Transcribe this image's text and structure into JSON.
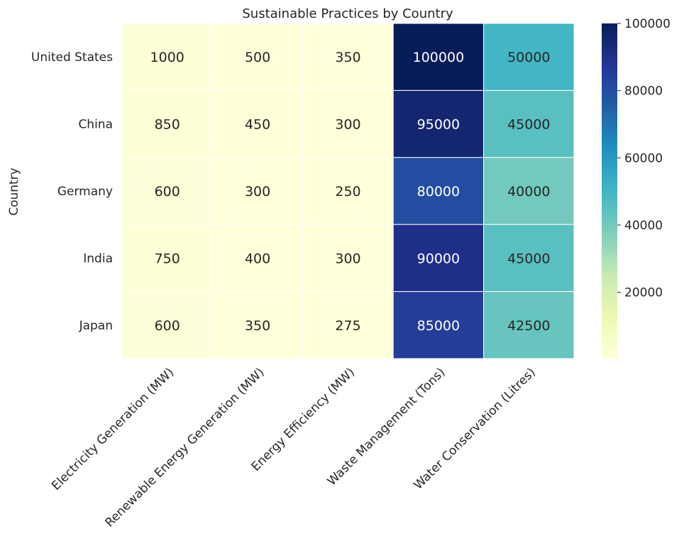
{
  "chart_data": {
    "type": "heatmap",
    "title": "Sustainable Practices by Country",
    "xlabel": "",
    "ylabel": "Country",
    "rows": [
      "United States",
      "China",
      "Germany",
      "India",
      "Japan"
    ],
    "columns": [
      "Electricity Generation (MW)",
      "Renewable Energy Generation (MW)",
      "Energy Efficiency (MW)",
      "Waste Management (Tons)",
      "Water Conservation (Litres)"
    ],
    "values": [
      [
        1000,
        500,
        350,
        100000,
        50000
      ],
      [
        850,
        450,
        300,
        95000,
        45000
      ],
      [
        600,
        300,
        250,
        80000,
        40000
      ],
      [
        750,
        400,
        300,
        90000,
        45000
      ],
      [
        600,
        350,
        275,
        85000,
        42500
      ]
    ],
    "annotations": [
      [
        "1000",
        "500",
        "350",
        "100000",
        "50000"
      ],
      [
        "850",
        "450",
        "300",
        "95000",
        "45000"
      ],
      [
        "600",
        "300",
        "250",
        "80000",
        "40000"
      ],
      [
        "750",
        "400",
        "300",
        "90000",
        "45000"
      ],
      [
        "600",
        "350",
        "275",
        "85000",
        "42500"
      ]
    ],
    "colormap": "YlGnBu",
    "colorbar": {
      "range": [
        250,
        100000
      ],
      "ticks": [
        20000,
        40000,
        60000,
        80000,
        100000
      ],
      "tick_labels": [
        "20000",
        "40000",
        "60000",
        "80000",
        "100000"
      ]
    },
    "cell_border_color": "#ffffff"
  }
}
